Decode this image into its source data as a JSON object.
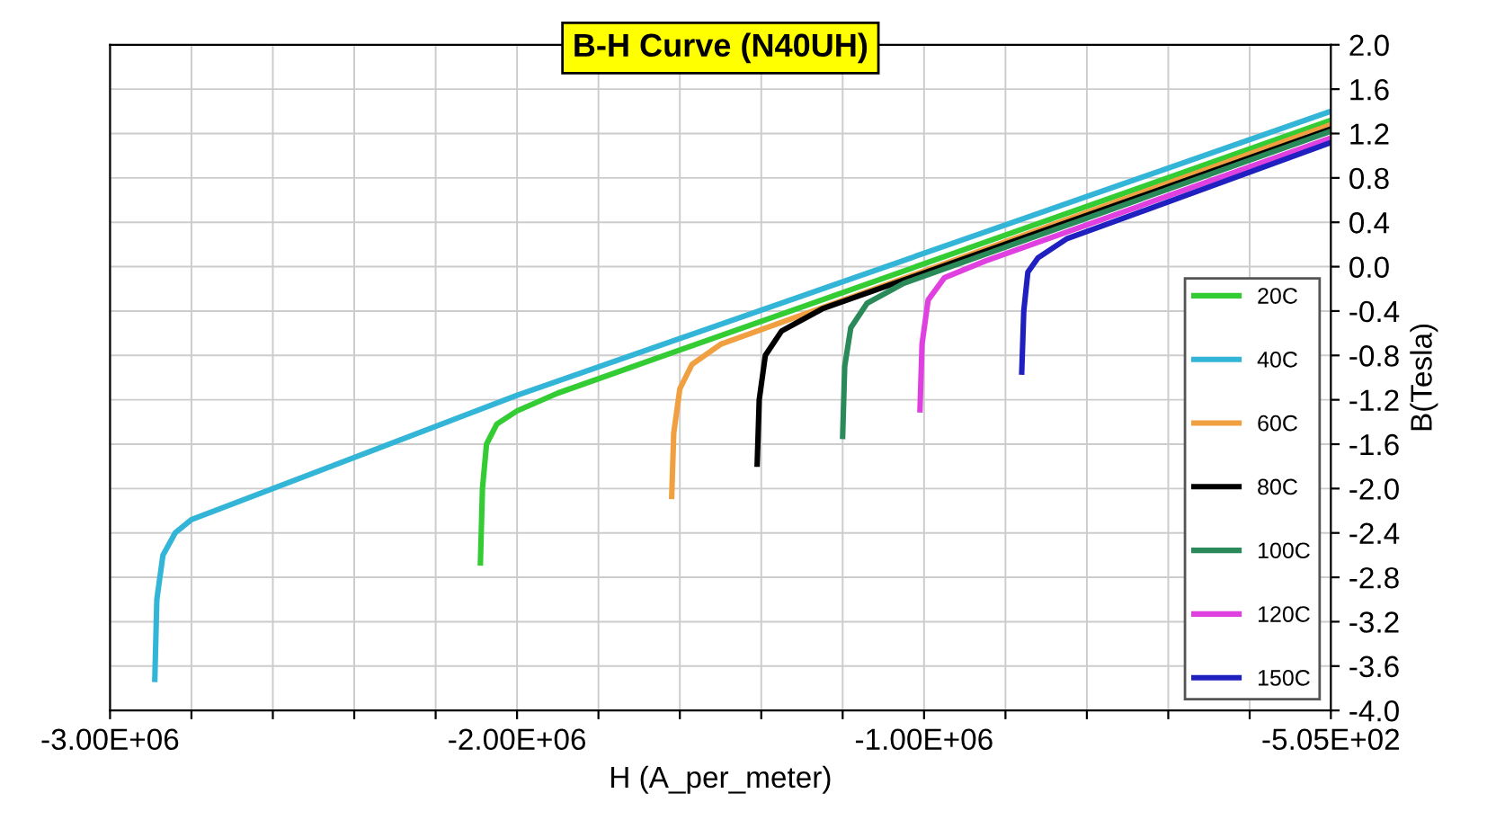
{
  "chart_data": {
    "type": "line",
    "title": "B-H Curve (N40UH)",
    "xlabel": "H (A_per_meter)",
    "ylabel": "B(Tesla)",
    "xlim": [
      -3000000,
      -505
    ],
    "ylim": [
      -4.0,
      2.0
    ],
    "xticks": [
      {
        "value": -3000000,
        "label": "-3.00E+06"
      },
      {
        "value": -2800000,
        "label": null
      },
      {
        "value": -2600000,
        "label": null
      },
      {
        "value": -2400000,
        "label": null
      },
      {
        "value": -2200000,
        "label": null
      },
      {
        "value": -2000000,
        "label": "-2.00E+06"
      },
      {
        "value": -1800000,
        "label": null
      },
      {
        "value": -1600000,
        "label": null
      },
      {
        "value": -1400000,
        "label": null
      },
      {
        "value": -1200000,
        "label": null
      },
      {
        "value": -1000000,
        "label": "-1.00E+06"
      },
      {
        "value": -800000,
        "label": null
      },
      {
        "value": -600000,
        "label": null
      },
      {
        "value": -400000,
        "label": null
      },
      {
        "value": -200000,
        "label": null
      },
      {
        "value": -505,
        "label": "-5.05E+02"
      }
    ],
    "yticks": [
      {
        "value": 2.0,
        "label": "2.0"
      },
      {
        "value": 1.6,
        "label": "1.6"
      },
      {
        "value": 1.2,
        "label": "1.2"
      },
      {
        "value": 0.8,
        "label": "0.8"
      },
      {
        "value": 0.4,
        "label": "0.4"
      },
      {
        "value": 0.0,
        "label": "0.0"
      },
      {
        "value": -0.4,
        "label": "-0.4"
      },
      {
        "value": -0.8,
        "label": "-0.8"
      },
      {
        "value": -1.2,
        "label": "-1.2"
      },
      {
        "value": -1.6,
        "label": "-1.6"
      },
      {
        "value": -2.0,
        "label": "-2.0"
      },
      {
        "value": -2.4,
        "label": "-2.4"
      },
      {
        "value": -2.8,
        "label": "-2.8"
      },
      {
        "value": -3.2,
        "label": "-3.2"
      },
      {
        "value": -3.6,
        "label": "-3.6"
      },
      {
        "value": -4.0,
        "label": "-4.0"
      }
    ],
    "grid": true,
    "legend": "right",
    "marker": "none",
    "line_style": "solid",
    "series": [
      {
        "name": "20C",
        "color": "#33cc33",
        "x": [
          -2090000,
          -2085000,
          -2075000,
          -2050000,
          -2000000,
          -1900000,
          -505
        ],
        "values": [
          -2.67,
          -2.0,
          -1.6,
          -1.42,
          -1.3,
          -1.14,
          1.32
        ]
      },
      {
        "name": "40C",
        "color": "#33b5d8",
        "x": [
          -2890000,
          -2885000,
          -2870000,
          -2840000,
          -2800000,
          -2000000,
          -505
        ],
        "values": [
          -3.72,
          -3.0,
          -2.6,
          -2.4,
          -2.28,
          -1.16,
          1.4
        ]
      },
      {
        "name": "60C",
        "color": "#f0a040",
        "x": [
          -1620000,
          -1615000,
          -1600000,
          -1570000,
          -1500000,
          -505
        ],
        "values": [
          -2.07,
          -1.5,
          -1.1,
          -0.88,
          -0.7,
          1.28
        ]
      },
      {
        "name": "80C",
        "color": "#000000",
        "x": [
          -1410000,
          -1405000,
          -1390000,
          -1350000,
          -1250000,
          -505
        ],
        "values": [
          -1.78,
          -1.2,
          -0.8,
          -0.58,
          -0.38,
          1.24
        ]
      },
      {
        "name": "100C",
        "color": "#2a8a5a",
        "x": [
          -1200000,
          -1195000,
          -1180000,
          -1140000,
          -1050000,
          -505
        ],
        "values": [
          -1.53,
          -0.9,
          -0.55,
          -0.33,
          -0.15,
          1.22
        ]
      },
      {
        "name": "120C",
        "color": "#e040e0",
        "x": [
          -1010000,
          -1005000,
          -990000,
          -950000,
          -850000,
          -505
        ],
        "values": [
          -1.29,
          -0.7,
          -0.3,
          -0.1,
          0.05,
          1.16
        ]
      },
      {
        "name": "150C",
        "color": "#2020c0",
        "x": [
          -760000,
          -755000,
          -745000,
          -720000,
          -650000,
          -505
        ],
        "values": [
          -0.95,
          -0.4,
          -0.05,
          0.08,
          0.25,
          1.12
        ]
      }
    ]
  }
}
